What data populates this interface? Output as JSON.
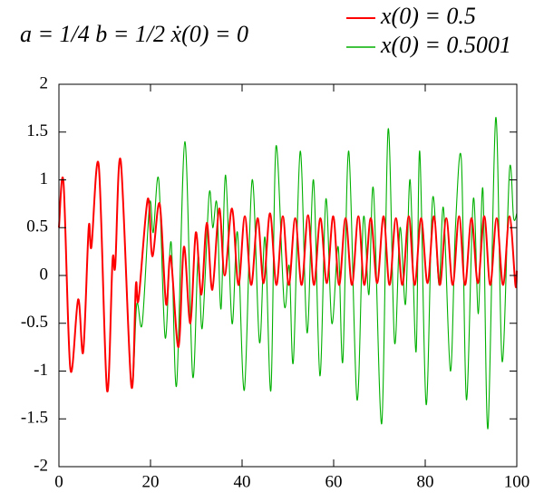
{
  "chart_data": {
    "type": "line",
    "annotation": "a = 1/4    b = 1/2    ẋ(0) = 0",
    "xlim": [
      0,
      100
    ],
    "xticks": [
      0,
      20,
      40,
      60,
      80,
      100
    ],
    "ylim": [
      -2,
      2
    ],
    "yticks": [
      -2,
      -1.5,
      -1,
      -0.5,
      0,
      0.5,
      1,
      1.5,
      2
    ],
    "legend": "top-right",
    "series": [
      {
        "name": "x(0) = 0.5",
        "color": "#ff0000",
        "x": [
          0,
          1,
          2.5,
          4.2,
          5.3,
          6.5,
          7.1,
          8.7,
          10.5,
          11.7,
          12.3,
          13.5,
          15.8,
          16.8,
          17.4,
          19.4,
          20.4,
          22,
          23.4,
          24.4,
          26.1,
          27.3,
          28.7,
          29.9,
          31.1,
          32.3,
          33.5,
          35,
          36.2,
          37.8,
          39.2,
          40.6,
          42,
          43.4,
          44.7,
          46.1,
          47.5,
          48.9,
          50.2,
          51.6,
          53,
          54.4,
          55.7,
          57.1,
          58.5,
          59.9,
          61.2,
          62.6,
          64,
          65.4,
          66.7,
          68.1,
          69.5,
          70.9,
          72.2,
          73.6,
          75,
          76.4,
          77.7,
          79.1,
          80.5,
          81.9,
          83.2,
          84.6,
          86,
          87.4,
          88.7,
          90.1,
          91.5,
          92.9,
          94.2,
          95.6,
          97,
          98.4,
          99.7,
          100
        ],
        "values": [
          0.5,
          0.97,
          -0.98,
          -0.25,
          -0.8,
          0.5,
          0.3,
          1.15,
          -1.2,
          0.15,
          0.1,
          1.2,
          -1.15,
          -0.1,
          -0.25,
          0.8,
          0.2,
          0.75,
          -0.3,
          0.2,
          -0.75,
          0.3,
          -0.5,
          0.45,
          -0.2,
          0.55,
          -0.15,
          0.7,
          0,
          0.7,
          -0.1,
          0.62,
          -0.1,
          0.6,
          -0.08,
          0.65,
          -0.1,
          0.62,
          -0.1,
          0.6,
          -0.1,
          0.63,
          -0.1,
          0.6,
          -0.08,
          0.62,
          -0.1,
          0.6,
          -0.1,
          0.62,
          -0.1,
          0.6,
          -0.08,
          0.62,
          -0.1,
          0.6,
          -0.1,
          0.62,
          -0.1,
          0.6,
          -0.08,
          0.62,
          -0.1,
          0.6,
          -0.1,
          0.62,
          -0.1,
          0.6,
          -0.08,
          0.62,
          -0.1,
          0.6,
          -0.1,
          0.62,
          -0.1,
          0.05
        ]
      },
      {
        "name": "x(0) = 0.5001",
        "color": "#00b000",
        "x": [
          0,
          1,
          2.5,
          4.2,
          5.3,
          6.5,
          7.1,
          8.7,
          10.5,
          11.7,
          12.3,
          13.5,
          15.8,
          17,
          18.2,
          19.8,
          20.6,
          21.8,
          23.2,
          24.5,
          25.7,
          27.5,
          29.2,
          30.4,
          31.3,
          32.8,
          33.6,
          34.5,
          35.4,
          36.4,
          37.8,
          39,
          40.5,
          42.2,
          43.8,
          45,
          46.3,
          47.4,
          49.2,
          50.3,
          51.2,
          52.7,
          54.2,
          55.6,
          57,
          58.3,
          59.6,
          61,
          62,
          63.3,
          65.1,
          66.5,
          67.7,
          68.7,
          70.5,
          71.9,
          73.3,
          74.5,
          75.7,
          76.7,
          78,
          78.8,
          80.2,
          81.6,
          83,
          84,
          85.5,
          86.6,
          87.9,
          89,
          90.5,
          91.6,
          92.6,
          93.7,
          95.4,
          96.8,
          98.4,
          99.3,
          100
        ],
        "values": [
          0.5,
          0.97,
          -0.98,
          -0.25,
          -0.8,
          0.5,
          0.3,
          1.15,
          -1.2,
          0.15,
          0.1,
          1.2,
          -1.1,
          -0.3,
          -0.5,
          0.75,
          0.45,
          1.0,
          -0.65,
          0.35,
          -1.15,
          1.4,
          -1.05,
          0.2,
          -0.55,
          0.85,
          0.5,
          0.75,
          -0.35,
          1.05,
          -0.5,
          0.45,
          -1.2,
          1.0,
          -0.7,
          0.4,
          -1.2,
          1.35,
          -0.3,
          0.1,
          -0.9,
          1.3,
          -0.6,
          1.0,
          -1.05,
          0.8,
          -0.5,
          0.3,
          -0.9,
          1.3,
          -1.3,
          0.6,
          -0.2,
          0.9,
          -1.55,
          1.53,
          -0.7,
          0.5,
          -0.3,
          1.0,
          -0.8,
          1.3,
          -1.35,
          0.8,
          -0.1,
          0.7,
          -1.0,
          0.5,
          1.2,
          -1.3,
          0.8,
          -0.4,
          0.9,
          -1.6,
          1.65,
          -0.9,
          1.1,
          0.6,
          0.65
        ]
      }
    ]
  }
}
